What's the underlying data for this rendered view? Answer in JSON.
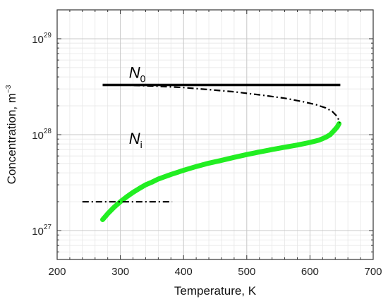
{
  "chart_data": {
    "type": "line",
    "xlabel": "Temperature, K",
    "ylabel_base": "Concentration, m",
    "ylabel_exp": "−3",
    "xlim": [
      200,
      700
    ],
    "ylim": [
      5e+26,
      2e+29
    ],
    "yscale": "log",
    "grid": true,
    "x_ticks": [
      "200",
      "300",
      "400",
      "500",
      "600",
      "700"
    ],
    "x_tick_values": [
      200,
      300,
      400,
      500,
      600,
      700
    ],
    "y_ticks": [
      {
        "base": "10",
        "exp": "27",
        "value": 1e+27
      },
      {
        "base": "10",
        "exp": "28",
        "value": 1e+28
      },
      {
        "base": "10",
        "exp": "29",
        "value": 1e+29
      }
    ],
    "annotations": [
      {
        "base": "N",
        "sub": "0",
        "x": 318,
        "y": 3.9e+28
      },
      {
        "base": "N",
        "sub": "i",
        "x": 318,
        "y": 8e+27
      }
    ],
    "series": [
      {
        "name": "N0",
        "color": "#000000",
        "style": "solid",
        "x": [
          272,
          648
        ],
        "y": [
          3.3e+28,
          3.3e+28
        ]
      },
      {
        "name": "Ni",
        "color": "#22ee22",
        "style": "solid",
        "x": [
          272,
          280,
          290,
          300,
          310,
          320,
          330,
          340,
          350,
          360,
          380,
          400,
          420,
          440,
          460,
          480,
          500,
          520,
          540,
          560,
          580,
          600,
          615,
          625,
          632,
          638,
          643,
          646
        ],
        "y": [
          1.3e+27,
          1.5e+27,
          1.75e+27,
          2e+27,
          2.25e+27,
          2.5e+27,
          2.75e+27,
          3e+27,
          3.2e+27,
          3.45e+27,
          3.85e+27,
          4.25e+27,
          4.65e+27,
          5.05e+27,
          5.4e+27,
          5.8e+27,
          6.2e+27,
          6.6e+27,
          7e+27,
          7.4e+27,
          7.8e+27,
          8.3e+27,
          8.8e+27,
          9.4e+27,
          1e+28,
          1.1e+28,
          1.2e+28,
          1.3e+28
        ]
      },
      {
        "name": "dash-dot",
        "color": "#000000",
        "style": "dashdot",
        "x": [
          300,
          330,
          360,
          400,
          440,
          480,
          520,
          560,
          590,
          610,
          625,
          635,
          641,
          645,
          647
        ],
        "y": [
          3.3e+28,
          3.25e+28,
          3.2e+28,
          3.1e+28,
          2.95e+28,
          2.8e+28,
          2.6e+28,
          2.4e+28,
          2.2e+28,
          2.05e+28,
          1.9e+28,
          1.75e+28,
          1.6e+28,
          1.45e+28,
          1.32e+28
        ]
      },
      {
        "name": "dash-dot-low",
        "color": "#000000",
        "style": "dashdot",
        "x": [
          240,
          382
        ],
        "y": [
          2e+27,
          2e+27
        ]
      }
    ]
  }
}
